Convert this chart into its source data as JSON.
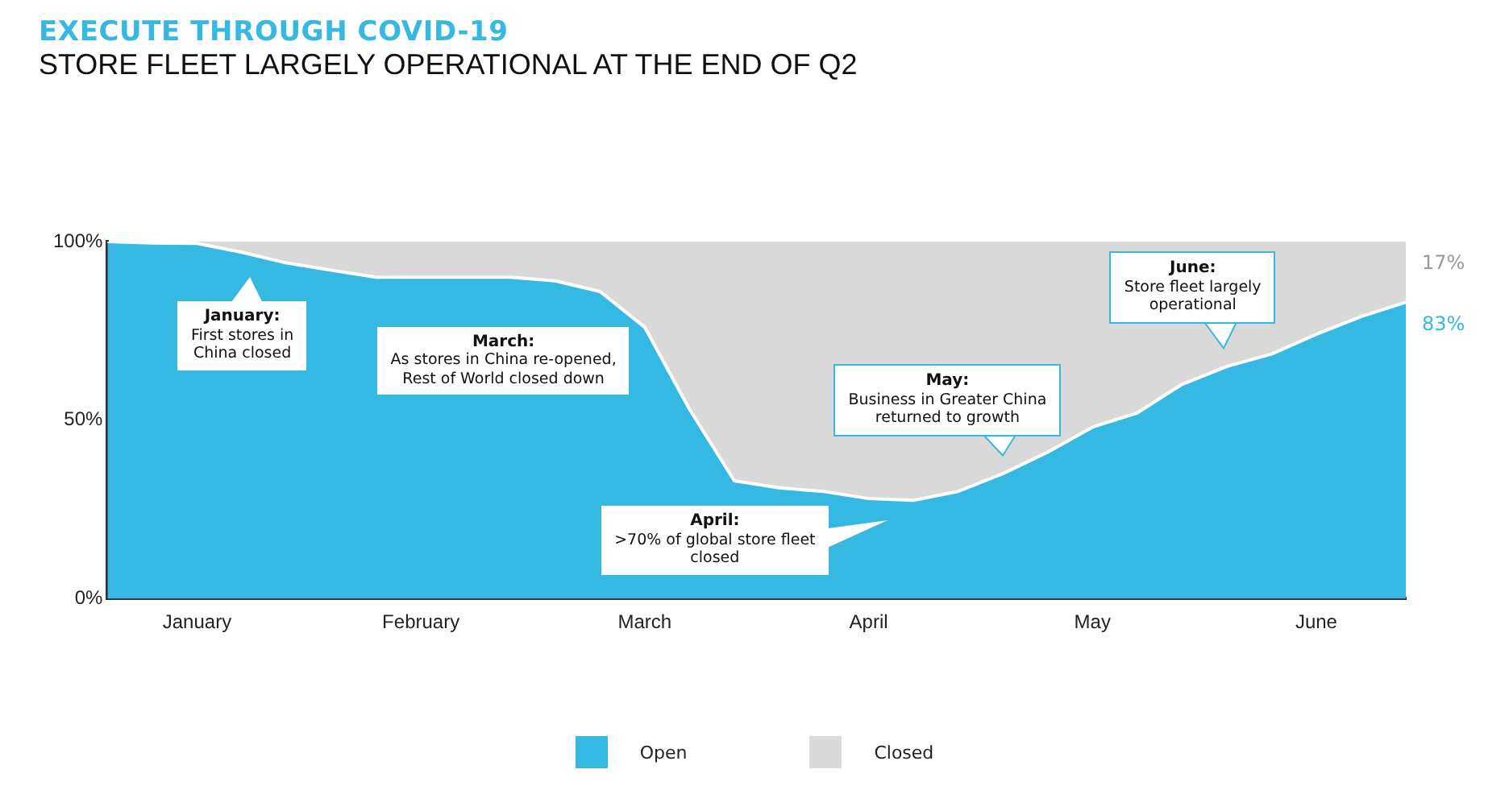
{
  "chart_data": {
    "type": "area",
    "title": "EXECUTE THROUGH COVID-19",
    "subtitle": "STORE FLEET LARGELY OPERATIONAL AT THE END OF Q2",
    "stacked": true,
    "marker": "none",
    "legend": "bottom",
    "grid": false,
    "categories": [
      null,
      null,
      "January",
      null,
      null,
      null,
      null,
      "February",
      null,
      null,
      null,
      null,
      "March",
      null,
      null,
      null,
      null,
      "April",
      null,
      null,
      null,
      null,
      "May",
      null,
      null,
      null,
      null,
      "June",
      null,
      null
    ],
    "ylim": [
      0,
      100
    ],
    "yticks": [
      {
        "value": 0,
        "label": "0%"
      },
      {
        "value": 50,
        "label": "50%"
      },
      {
        "value": 100,
        "label": "100%"
      }
    ],
    "series": [
      {
        "name": "Open",
        "color": "#35b8e2",
        "values": [
          100,
          99.6,
          99.5,
          97,
          94,
          92,
          90,
          90,
          90,
          90,
          89,
          86,
          76,
          53,
          33,
          31,
          30,
          28,
          27.5,
          30,
          35,
          41,
          48,
          52,
          60,
          65,
          68.5,
          74,
          79,
          83
        ],
        "value_labels": [
          null,
          null,
          null,
          null,
          null,
          null,
          null,
          null,
          null,
          null,
          null,
          null,
          null,
          null,
          null,
          null,
          null,
          null,
          null,
          null,
          null,
          null,
          null,
          null,
          null,
          null,
          null,
          null,
          null,
          "83%"
        ]
      },
      {
        "name": "Closed",
        "color": "#d9d9d9",
        "values": [
          0,
          0.4,
          0.5,
          3,
          6,
          8,
          10,
          10,
          10,
          10,
          11,
          14,
          24,
          47,
          67,
          69,
          70,
          72,
          72.5,
          70,
          65,
          59,
          52,
          48,
          40,
          35,
          31.5,
          26,
          21,
          17
        ],
        "value_labels": [
          null,
          null,
          null,
          null,
          null,
          null,
          null,
          null,
          null,
          null,
          null,
          null,
          null,
          null,
          null,
          null,
          null,
          null,
          null,
          null,
          null,
          null,
          null,
          null,
          null,
          null,
          null,
          null,
          null,
          "17%"
        ]
      }
    ],
    "annotations": [
      "January:\nFirst stores in\nChina closed",
      "March:\nAs stores in China re-opened,\nRest of World closed down",
      "April:\n>70% of global store fleet\nclosed",
      "May:\nBusiness in Greater China\nreturned to growth",
      "June:\nStore fleet largely\noperational"
    ]
  }
}
